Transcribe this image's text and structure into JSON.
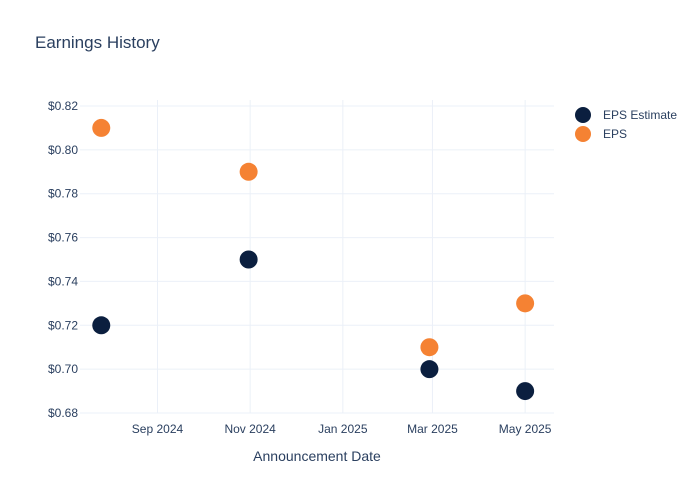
{
  "chart_data": {
    "type": "scatter",
    "title": "Earnings History",
    "xlabel": "Announcement Date",
    "ylabel": "",
    "x_ticks": [
      "Sep 2024",
      "Nov 2024",
      "Jan 2025",
      "Mar 2025",
      "May 2025"
    ],
    "y_ticks": [
      "$0.68",
      "$0.70",
      "$0.72",
      "$0.74",
      "$0.76",
      "$0.78",
      "$0.80",
      "$0.82"
    ],
    "ylim": [
      0.68,
      0.82
    ],
    "grid": true,
    "legend_position": "top-right",
    "series": [
      {
        "name": "EPS Estimate",
        "color": "#0b1f3f",
        "points": [
          {
            "x": "2024-07-26",
            "y": 0.72
          },
          {
            "x": "2024-10-31",
            "y": 0.75
          },
          {
            "x": "2025-02-27",
            "y": 0.7
          },
          {
            "x": "2025-05-01",
            "y": 0.69
          }
        ]
      },
      {
        "name": "EPS",
        "color": "#f58233",
        "points": [
          {
            "x": "2024-07-26",
            "y": 0.81
          },
          {
            "x": "2024-10-31",
            "y": 0.79
          },
          {
            "x": "2025-02-27",
            "y": 0.71
          },
          {
            "x": "2025-05-01",
            "y": 0.73
          }
        ]
      }
    ]
  }
}
